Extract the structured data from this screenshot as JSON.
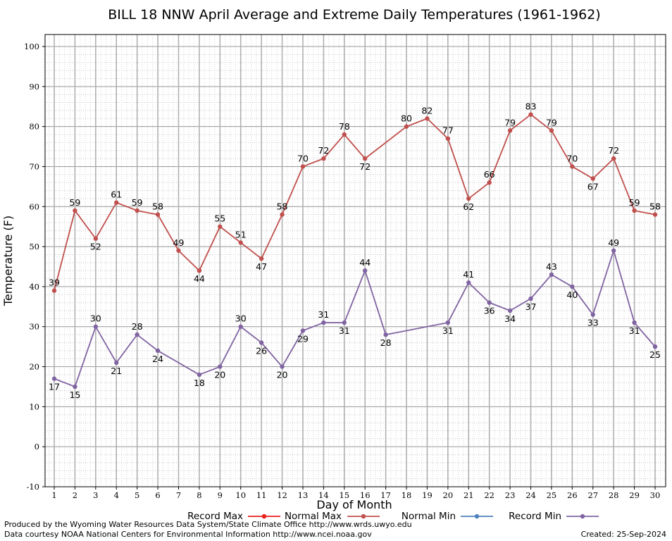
{
  "chart_data": {
    "type": "line",
    "title": "BILL 18 NNW April Average and Extreme Daily Temperatures (1961-1962)",
    "xlabel": "Day of Month",
    "ylabel": "Temperature (F)",
    "x": [
      1,
      2,
      3,
      4,
      5,
      6,
      7,
      8,
      9,
      10,
      11,
      12,
      13,
      14,
      15,
      16,
      17,
      18,
      19,
      20,
      21,
      22,
      23,
      24,
      25,
      26,
      27,
      28,
      29,
      30
    ],
    "xlim": [
      1,
      30
    ],
    "ylim": [
      -10,
      100
    ],
    "y_ticks": [
      -10,
      0,
      10,
      20,
      30,
      40,
      50,
      60,
      70,
      80,
      90,
      100
    ],
    "grid": true,
    "legend_position": "bottom",
    "series": [
      {
        "name": "Record Max",
        "color": "#e8201c",
        "x": [],
        "values": []
      },
      {
        "name": "Normal Max",
        "color": "#c0504d",
        "x": [
          1,
          2,
          3,
          4,
          5,
          6,
          7,
          8,
          9,
          10,
          11,
          12,
          13,
          14,
          15,
          16,
          18,
          19,
          20,
          21,
          22,
          23,
          24,
          25,
          26,
          27,
          28,
          29,
          30
        ],
        "values": [
          39,
          59,
          52,
          61,
          59,
          58,
          49,
          44,
          55,
          51,
          47,
          58,
          70,
          72,
          78,
          72,
          80,
          82,
          77,
          62,
          66,
          79,
          83,
          79,
          70,
          67,
          72,
          59,
          58
        ]
      },
      {
        "name": "Normal Min",
        "color": "#4f81bd",
        "x": [],
        "values": []
      },
      {
        "name": "Record Min",
        "color": "#8064a2",
        "x": [
          1,
          2,
          3,
          4,
          5,
          6,
          8,
          9,
          10,
          11,
          12,
          13,
          14,
          15,
          16,
          17,
          20,
          21,
          22,
          23,
          24,
          25,
          26,
          27,
          28,
          29,
          30
        ],
        "values": [
          17,
          15,
          30,
          21,
          28,
          24,
          18,
          20,
          30,
          26,
          20,
          29,
          31,
          31,
          44,
          28,
          31,
          41,
          36,
          34,
          37,
          43,
          40,
          33,
          49,
          31,
          25
        ]
      }
    ]
  },
  "footer": {
    "line1": "Produced by the Wyoming Water Resources Data System/State Climate Office http://www.wrds.uwyo.edu",
    "line2": "Data courtesy NOAA National Centers for Environmental Information http://www.ncei.noaa.gov",
    "created": "Created:  25-Sep-2024"
  }
}
